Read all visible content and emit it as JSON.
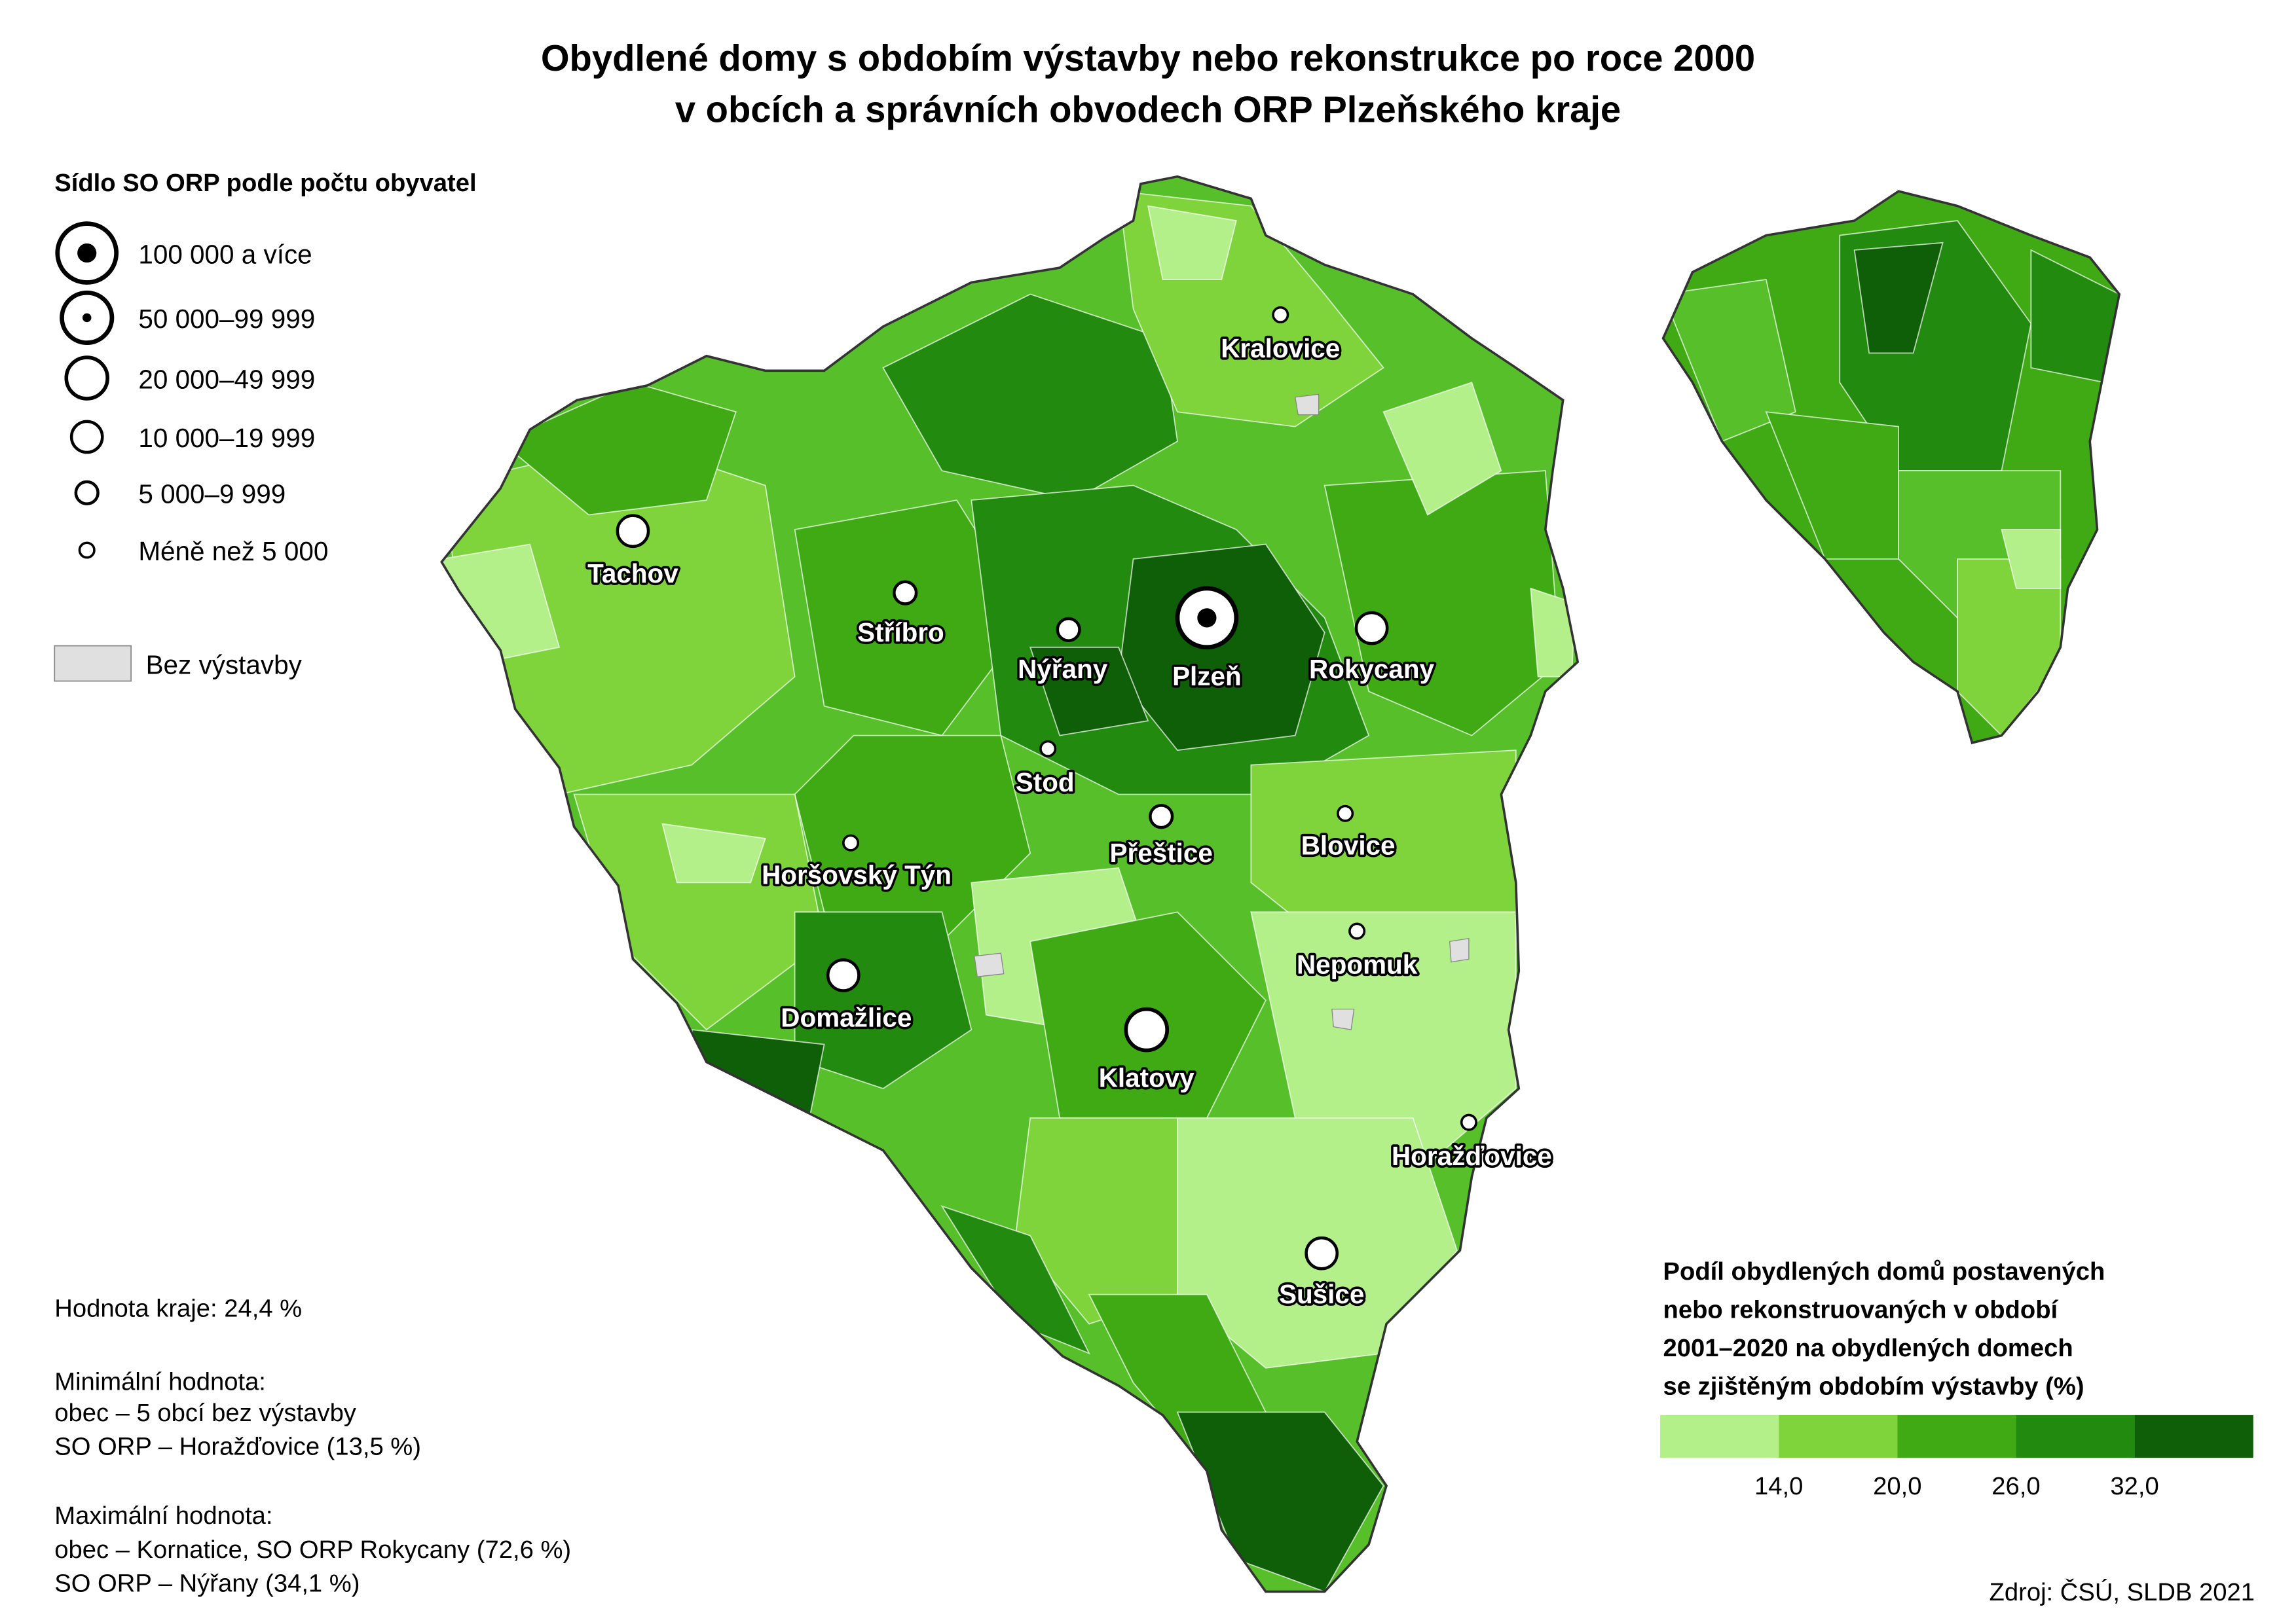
{
  "title": [
    "Obydlené domy s obdobím výstavby nebo rekonstrukce po roce 2000",
    "v obcích a správních obvodech ORP Plzeňského kraje"
  ],
  "symbol_legend": {
    "title": "Sídlo SO ORP podle počtu obyvatel",
    "items": [
      "100 000 a více",
      "50 000–99 999",
      "20 000–49 999",
      "10 000–19 999",
      "5 000–9 999",
      "Méně než 5 000"
    ]
  },
  "no_construction": "Bez výstavby",
  "cities": [
    "Kralovice",
    "Tachov",
    "Stříbro",
    "Nýřany",
    "Plzeň",
    "Rokycany",
    "Stod",
    "Přeštice",
    "Blovice",
    "Horšovský Týn",
    "Nepomuk",
    "Domažlice",
    "Klatovy",
    "Horažďovice",
    "Sušice"
  ],
  "notes": {
    "region_value": "Hodnota kraje: 24,4 %",
    "min_title": "Minimální hodnota:",
    "min_lines": [
      "obec – 5 obcí bez výstavby",
      "SO ORP – Horažďovice (13,5 %)"
    ],
    "max_title": "Maximální hodnota:",
    "max_lines": [
      "obec – Kornatice, SO ORP Rokycany (72,6 %)",
      "SO ORP – Nýřany (34,1 %)"
    ]
  },
  "color_legend": {
    "title_lines": [
      "Podíl obydlených domů postavených",
      "nebo rekonstruovaných v období",
      "2001–2020 na obydlených domech",
      "se zjištěným obdobím výstavby (%)"
    ],
    "ticks": [
      "14,0",
      "20,0",
      "26,0",
      "32,0"
    ]
  },
  "source": "Zdroj: ČSÚ, SLDB 2021"
}
